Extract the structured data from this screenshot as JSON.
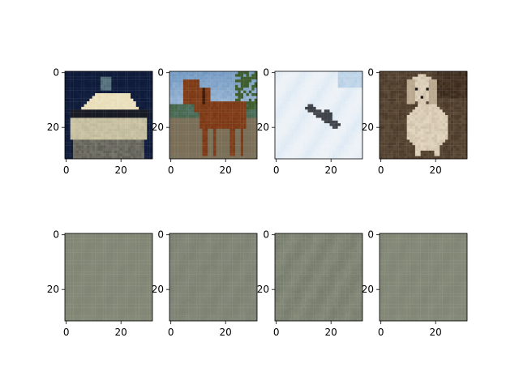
{
  "figure": {
    "background": "#ffffff",
    "spine_color": "#000000",
    "tick_color": "#000000"
  },
  "chart_data": [
    {
      "type": "heatmap",
      "content": "ship",
      "row": "top",
      "xlim": [
        0,
        31
      ],
      "ylim": [
        0,
        31
      ],
      "x_ticks": [
        0,
        20
      ],
      "y_ticks": [
        0,
        20
      ],
      "palette": {
        "bg": "#0d1a3a",
        "hull": "#e8ddb6",
        "band": "#1a1b22",
        "deck": "#9c9a86",
        "mast": "#5d7883"
      }
    },
    {
      "type": "heatmap",
      "content": "horse",
      "row": "top",
      "xlim": [
        0,
        31
      ],
      "ylim": [
        0,
        31
      ],
      "x_ticks": [
        0,
        20
      ],
      "y_ticks": [
        0,
        20
      ],
      "palette": {
        "sky": "#6f96c0",
        "trees": "#3d5b2c",
        "ground": "#77705a",
        "horse": "#7a3816",
        "mane": "#3b1808"
      }
    },
    {
      "type": "heatmap",
      "content": "airplane",
      "row": "top",
      "xlim": [
        0,
        31
      ],
      "ylim": [
        0,
        31
      ],
      "x_ticks": [
        0,
        20
      ],
      "y_ticks": [
        0,
        20
      ],
      "palette": {
        "sky": "#dde9f4",
        "cloud": "#f1f4f7",
        "plane": "#3a3d44"
      }
    },
    {
      "type": "heatmap",
      "content": "dog",
      "row": "top",
      "xlim": [
        0,
        31
      ],
      "ylim": [
        0,
        31
      ],
      "x_ticks": [
        0,
        20
      ],
      "y_ticks": [
        0,
        20
      ],
      "palette": {
        "bg": "#4b3a2a",
        "rock": "#6d5a44",
        "dog": "#e4d7c2",
        "shadow": "#b6a58c",
        "eye": "#1e1a16"
      }
    },
    {
      "type": "heatmap",
      "content": "noise",
      "row": "bottom",
      "xlim": [
        0,
        31
      ],
      "ylim": [
        0,
        31
      ],
      "x_ticks": [
        0,
        20
      ],
      "y_ticks": [
        0,
        20
      ],
      "palette": {
        "base": "#858a78",
        "tint": "#7f8473"
      }
    },
    {
      "type": "heatmap",
      "content": "noise",
      "row": "bottom",
      "xlim": [
        0,
        31
      ],
      "ylim": [
        0,
        31
      ],
      "x_ticks": [
        0,
        20
      ],
      "y_ticks": [
        0,
        20
      ],
      "palette": {
        "base": "#83887a",
        "tint": "#7b8070"
      }
    },
    {
      "type": "heatmap",
      "content": "noise",
      "row": "bottom",
      "xlim": [
        0,
        31
      ],
      "ylim": [
        0,
        31
      ],
      "x_ticks": [
        0,
        20
      ],
      "y_ticks": [
        0,
        20
      ],
      "palette": {
        "base": "#858a79",
        "tint": "#747a6b"
      }
    },
    {
      "type": "heatmap",
      "content": "noise",
      "row": "bottom",
      "xlim": [
        0,
        31
      ],
      "ylim": [
        0,
        31
      ],
      "x_ticks": [
        0,
        20
      ],
      "y_ticks": [
        0,
        20
      ],
      "palette": {
        "base": "#868b79",
        "tint": "#7e8373"
      }
    }
  ]
}
